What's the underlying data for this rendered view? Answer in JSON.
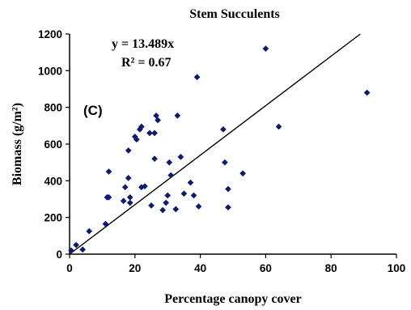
{
  "chart_data": {
    "type": "scatter",
    "title": "Stem Succulents",
    "xlabel": "Percentage canopy cover",
    "ylabel": "Biomass (g/m²)",
    "xlim": [
      0,
      100
    ],
    "ylim": [
      0,
      1200
    ],
    "x_ticks": [
      "0",
      "20",
      "40",
      "60",
      "80",
      "100"
    ],
    "y_ticks": [
      "0",
      "200",
      "400",
      "600",
      "800",
      "1000",
      "1200"
    ],
    "grid": false,
    "legend": "none",
    "panel_label": "(C)",
    "annotations": [
      "y = 13.489x",
      "R² = 0.67"
    ],
    "trendline": {
      "slope": 13.489,
      "intercept": 0
    },
    "marker_color": "#0f1a6b",
    "points": [
      {
        "x": 0.5,
        "y": 20
      },
      {
        "x": 2,
        "y": 50
      },
      {
        "x": 4,
        "y": 25
      },
      {
        "x": 6,
        "y": 125
      },
      {
        "x": 11,
        "y": 165
      },
      {
        "x": 11.5,
        "y": 310
      },
      {
        "x": 12,
        "y": 310
      },
      {
        "x": 12,
        "y": 450
      },
      {
        "x": 16.5,
        "y": 290
      },
      {
        "x": 17,
        "y": 365
      },
      {
        "x": 18,
        "y": 565
      },
      {
        "x": 18,
        "y": 415
      },
      {
        "x": 18.5,
        "y": 310
      },
      {
        "x": 18.5,
        "y": 280
      },
      {
        "x": 20,
        "y": 640
      },
      {
        "x": 20.5,
        "y": 625
      },
      {
        "x": 21.5,
        "y": 680
      },
      {
        "x": 22,
        "y": 365
      },
      {
        "x": 22,
        "y": 695
      },
      {
        "x": 23,
        "y": 370
      },
      {
        "x": 24.5,
        "y": 660
      },
      {
        "x": 25,
        "y": 265
      },
      {
        "x": 26,
        "y": 660
      },
      {
        "x": 26,
        "y": 520
      },
      {
        "x": 26.5,
        "y": 755
      },
      {
        "x": 27,
        "y": 730
      },
      {
        "x": 28.5,
        "y": 240
      },
      {
        "x": 29.5,
        "y": 280
      },
      {
        "x": 30,
        "y": 320
      },
      {
        "x": 30.5,
        "y": 500
      },
      {
        "x": 31,
        "y": 430
      },
      {
        "x": 32.5,
        "y": 245
      },
      {
        "x": 33,
        "y": 755
      },
      {
        "x": 34,
        "y": 530
      },
      {
        "x": 35,
        "y": 330
      },
      {
        "x": 37,
        "y": 390
      },
      {
        "x": 38,
        "y": 320
      },
      {
        "x": 39,
        "y": 965
      },
      {
        "x": 39.5,
        "y": 260
      },
      {
        "x": 47,
        "y": 680
      },
      {
        "x": 47.5,
        "y": 500
      },
      {
        "x": 48.5,
        "y": 355
      },
      {
        "x": 48.5,
        "y": 255
      },
      {
        "x": 53,
        "y": 440
      },
      {
        "x": 60,
        "y": 1120
      },
      {
        "x": 64,
        "y": 695
      },
      {
        "x": 91,
        "y": 880
      }
    ]
  }
}
